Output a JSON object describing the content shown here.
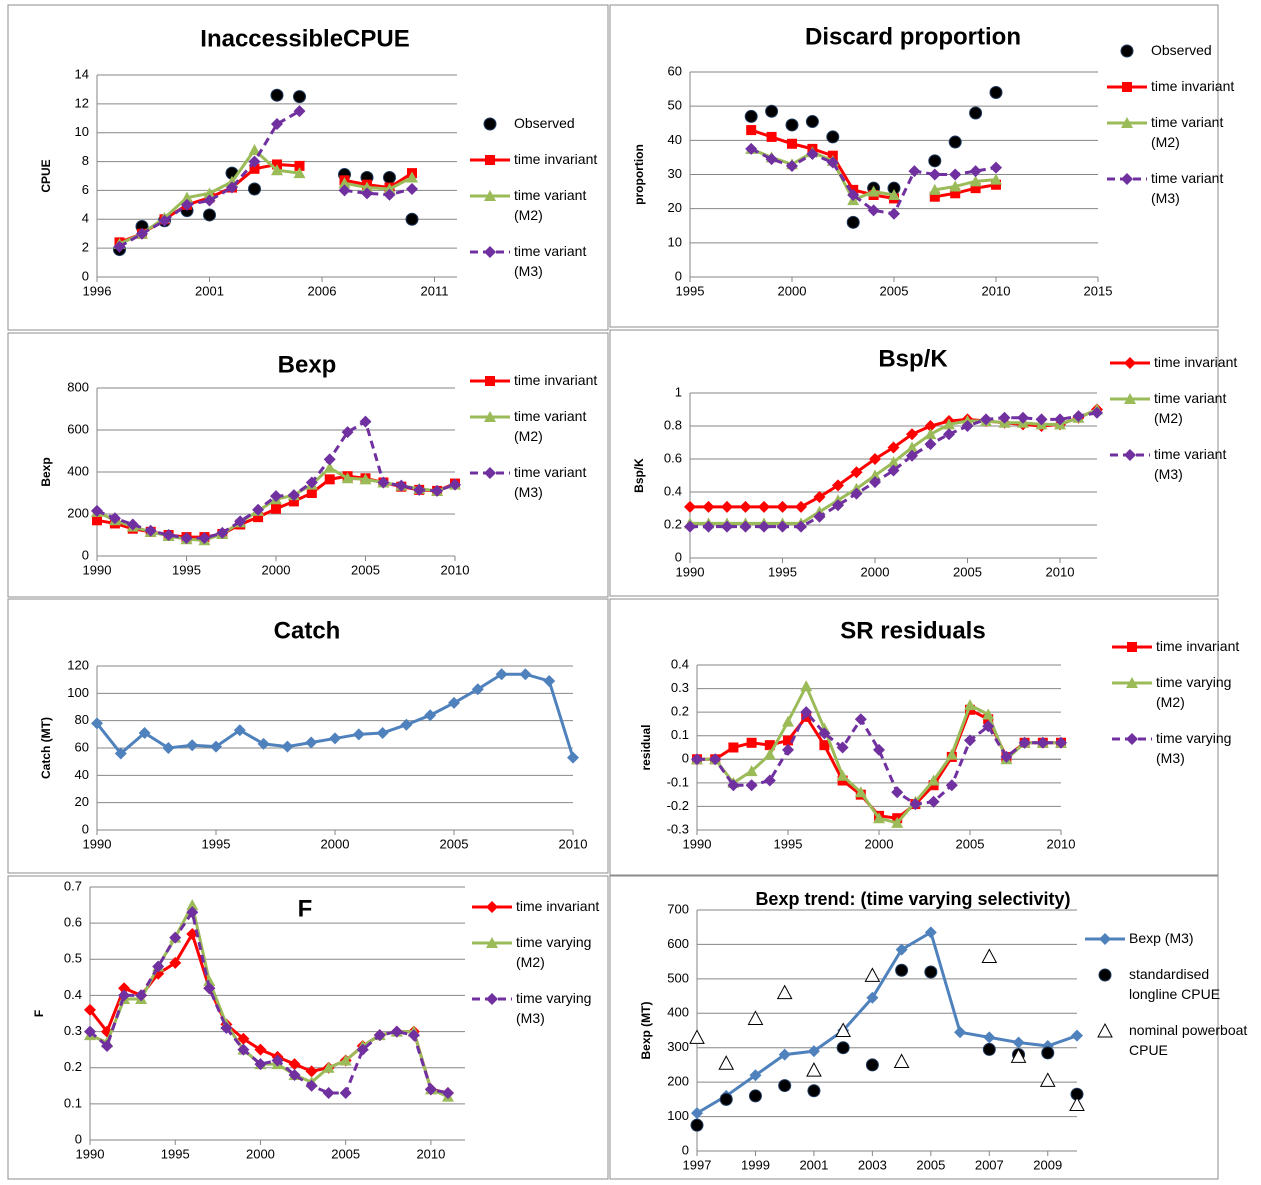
{
  "chart_data": [
    {
      "type": "line",
      "title": "InaccessibleCPUE",
      "y_label": "CPUE",
      "x": [
        1997,
        1998,
        1999,
        2000,
        2001,
        2002,
        2003,
        2004,
        2005,
        2006,
        2007,
        2008,
        2009,
        2010
      ],
      "xlim": [
        1996,
        2012
      ],
      "xticks": [
        1996,
        2001,
        2006,
        2011
      ],
      "ylim": [
        0,
        14
      ],
      "yticks": [
        0,
        2,
        4,
        6,
        8,
        10,
        12,
        14
      ],
      "grid": true,
      "series": [
        {
          "name": "Observed",
          "color": "#000000",
          "marker": "circle",
          "line": false,
          "values": [
            1.9,
            3.5,
            3.9,
            4.6,
            4.3,
            7.2,
            6.1,
            12.6,
            12.5,
            null,
            7.1,
            6.9,
            6.9,
            4.0
          ]
        },
        {
          "name": "time invariant",
          "color": "#ff0000",
          "marker": "square",
          "values": [
            2.4,
            3.0,
            4.0,
            5.0,
            5.5,
            6.2,
            7.5,
            7.8,
            7.7,
            null,
            6.7,
            6.4,
            6.2,
            7.2
          ]
        },
        {
          "name": "time variant (M2)",
          "color": "#9bbb59",
          "marker": "triangle",
          "values": [
            2.3,
            3.0,
            4.1,
            5.5,
            5.8,
            6.6,
            8.8,
            7.4,
            7.2,
            null,
            6.5,
            6.2,
            6.1,
            6.9
          ]
        },
        {
          "name": "time variant (M3)",
          "color": "#7030a0",
          "marker": "diamond",
          "dash": true,
          "values": [
            2.1,
            3.0,
            3.9,
            5.0,
            5.3,
            6.2,
            8.0,
            10.6,
            11.5,
            null,
            6.0,
            5.8,
            5.7,
            6.1
          ]
        }
      ]
    },
    {
      "type": "line",
      "title": "Discard proportion",
      "y_label": "proportion",
      "x": [
        1998,
        1999,
        2000,
        2001,
        2002,
        2003,
        2004,
        2005,
        2006,
        2007,
        2008,
        2009,
        2010
      ],
      "xlim": [
        1995,
        2015
      ],
      "xticks": [
        1995,
        2000,
        2005,
        2010,
        2015
      ],
      "ylim": [
        0,
        60
      ],
      "yticks": [
        0,
        10,
        20,
        30,
        40,
        50,
        60
      ],
      "grid": true,
      "series": [
        {
          "name": "Observed",
          "color": "#000000",
          "marker": "circle",
          "line": false,
          "values": [
            47,
            48.5,
            44.5,
            45.5,
            41,
            16,
            26,
            26,
            null,
            34,
            39.5,
            48,
            54
          ]
        },
        {
          "name": "time invariant",
          "color": "#ff0000",
          "marker": "square",
          "values": [
            43,
            41,
            39,
            37.5,
            35.5,
            25.5,
            24,
            23,
            null,
            23.5,
            24.5,
            26,
            27
          ]
        },
        {
          "name": "time variant (M2)",
          "color": "#9bbb59",
          "marker": "triangle",
          "values": [
            37.5,
            35,
            33,
            36.5,
            34,
            22.5,
            25,
            24,
            null,
            25.5,
            26.5,
            28,
            28.5
          ]
        },
        {
          "name": "time variant (M3)",
          "color": "#7030a0",
          "marker": "diamond",
          "dash": true,
          "values": [
            37.5,
            34.5,
            32.5,
            36,
            33.5,
            24,
            19.5,
            18.5,
            31,
            30,
            30,
            31,
            32
          ]
        }
      ]
    },
    {
      "type": "line",
      "title": "Bexp",
      "y_label": "Bexp",
      "x": [
        1990,
        1991,
        1992,
        1993,
        1994,
        1995,
        1996,
        1997,
        1998,
        1999,
        2000,
        2001,
        2002,
        2003,
        2004,
        2005,
        2006,
        2007,
        2008,
        2009,
        2010
      ],
      "xlim": [
        1990,
        2010
      ],
      "xticks": [
        1990,
        1995,
        2000,
        2005,
        2010
      ],
      "ylim": [
        0,
        800
      ],
      "yticks": [
        0,
        200,
        400,
        600,
        800
      ],
      "grid": true,
      "series": [
        {
          "name": "time invariant",
          "color": "#ff0000",
          "marker": "square",
          "values": [
            170,
            155,
            130,
            115,
            100,
            90,
            90,
            105,
            150,
            185,
            225,
            260,
            300,
            365,
            380,
            370,
            350,
            330,
            315,
            310,
            345
          ]
        },
        {
          "name": "time variant (M2)",
          "color": "#9bbb59",
          "marker": "triangle",
          "values": [
            210,
            170,
            140,
            115,
            95,
            80,
            75,
            105,
            160,
            215,
            270,
            290,
            340,
            420,
            370,
            365,
            350,
            335,
            320,
            310,
            340
          ]
        },
        {
          "name": "time variant (M3)",
          "color": "#7030a0",
          "marker": "diamond",
          "dash": true,
          "values": [
            215,
            180,
            150,
            120,
            100,
            85,
            85,
            110,
            165,
            220,
            285,
            290,
            350,
            460,
            590,
            640,
            350,
            335,
            315,
            310,
            340
          ]
        }
      ]
    },
    {
      "type": "line",
      "title": "Bsp/K",
      "y_label": "Bsp/K",
      "x": [
        1990,
        1991,
        1992,
        1993,
        1994,
        1995,
        1996,
        1997,
        1998,
        1999,
        2000,
        2001,
        2002,
        2003,
        2004,
        2005,
        2006,
        2007,
        2008,
        2009,
        2010,
        2011,
        2012
      ],
      "xlim": [
        1990,
        2012
      ],
      "xticks": [
        1990,
        1995,
        2000,
        2005,
        2010
      ],
      "ylim": [
        0,
        1
      ],
      "yticks": [
        0,
        0.2,
        0.4,
        0.6,
        0.8,
        1
      ],
      "grid": true,
      "series": [
        {
          "name": "time invariant",
          "color": "#ff0000",
          "marker": "diamond",
          "values": [
            0.31,
            0.31,
            0.31,
            0.31,
            0.31,
            0.31,
            0.31,
            0.37,
            0.44,
            0.52,
            0.6,
            0.67,
            0.75,
            0.8,
            0.83,
            0.84,
            0.83,
            0.82,
            0.81,
            0.8,
            0.81,
            0.85,
            0.9
          ]
        },
        {
          "name": "time variant (M2)",
          "color": "#9bbb59",
          "marker": "triangle",
          "values": [
            0.21,
            0.21,
            0.21,
            0.21,
            0.21,
            0.21,
            0.21,
            0.28,
            0.35,
            0.42,
            0.5,
            0.58,
            0.67,
            0.75,
            0.81,
            0.83,
            0.83,
            0.82,
            0.82,
            0.81,
            0.81,
            0.85,
            0.9
          ]
        },
        {
          "name": "time variant (M3)",
          "color": "#7030a0",
          "marker": "diamond",
          "dash": true,
          "values": [
            0.19,
            0.19,
            0.19,
            0.19,
            0.19,
            0.19,
            0.19,
            0.25,
            0.32,
            0.39,
            0.46,
            0.53,
            0.62,
            0.69,
            0.75,
            0.8,
            0.84,
            0.85,
            0.85,
            0.84,
            0.84,
            0.86,
            0.88
          ]
        }
      ]
    },
    {
      "type": "line",
      "title": "Catch",
      "y_label": "Catch (MT)",
      "x": [
        1990,
        1991,
        1992,
        1993,
        1994,
        1995,
        1996,
        1997,
        1998,
        1999,
        2000,
        2001,
        2002,
        2003,
        2004,
        2005,
        2006,
        2007,
        2008,
        2009,
        2010
      ],
      "xlim": [
        1990,
        2010
      ],
      "xticks": [
        1990,
        1995,
        2000,
        2005,
        2010
      ],
      "ylim": [
        0,
        120
      ],
      "yticks": [
        0,
        20,
        40,
        60,
        80,
        100,
        120
      ],
      "grid": true,
      "series": [
        {
          "color": "#4f81bd",
          "marker": "diamond",
          "values": [
            78,
            56,
            71,
            60,
            62,
            61,
            73,
            63,
            61,
            64,
            67,
            70,
            71,
            77,
            84,
            93,
            103,
            114,
            114,
            109,
            53
          ]
        }
      ]
    },
    {
      "type": "line",
      "title": "SR residuals",
      "y_label": "residual",
      "x": [
        1990,
        1991,
        1992,
        1993,
        1994,
        1995,
        1996,
        1997,
        1998,
        1999,
        2000,
        2001,
        2002,
        2003,
        2004,
        2005,
        2006,
        2007,
        2008,
        2009,
        2010
      ],
      "xlim": [
        1990,
        2010
      ],
      "xticks": [
        1990,
        1995,
        2000,
        2005,
        2010
      ],
      "ylim": [
        -0.3,
        0.4
      ],
      "yticks": [
        -0.3,
        -0.2,
        -0.1,
        0,
        0.1,
        0.2,
        0.3,
        0.4
      ],
      "grid": true,
      "series": [
        {
          "name": "time invariant",
          "color": "#ff0000",
          "marker": "square",
          "values": [
            0,
            0,
            0.05,
            0.07,
            0.06,
            0.08,
            0.18,
            0.06,
            -0.09,
            -0.15,
            -0.24,
            -0.25,
            -0.19,
            -0.11,
            0.01,
            0.21,
            0.17,
            0.01,
            0.07,
            0.07,
            0.07
          ]
        },
        {
          "name": "time varying (M2)",
          "color": "#9bbb59",
          "marker": "triangle",
          "values": [
            0,
            0,
            -0.1,
            -0.05,
            0.02,
            0.16,
            0.31,
            0.13,
            -0.07,
            -0.14,
            -0.25,
            -0.27,
            -0.18,
            -0.09,
            0.02,
            0.23,
            0.19,
            0,
            0.07,
            0.07,
            0.07
          ]
        },
        {
          "name": "time varying (M3)",
          "color": "#7030a0",
          "marker": "diamond",
          "dash": true,
          "values": [
            0,
            0,
            -0.11,
            -0.11,
            -0.09,
            0.04,
            0.2,
            0.11,
            0.05,
            0.17,
            0.04,
            -0.14,
            -0.19,
            -0.18,
            -0.11,
            0.08,
            0.14,
            0.01,
            0.07,
            0.07,
            0.07
          ]
        }
      ]
    },
    {
      "type": "line",
      "title": "F",
      "y_label": "F",
      "x": [
        1990,
        1991,
        1992,
        1993,
        1994,
        1995,
        1996,
        1997,
        1998,
        1999,
        2000,
        2001,
        2002,
        2003,
        2004,
        2005,
        2006,
        2007,
        2008,
        2009,
        2010,
        2011
      ],
      "xlim": [
        1990,
        2012
      ],
      "xticks": [
        1990,
        1995,
        2000,
        2005,
        2010
      ],
      "ylim": [
        0,
        0.7
      ],
      "yticks": [
        0,
        0.1,
        0.2,
        0.3,
        0.4,
        0.5,
        0.6,
        0.7
      ],
      "grid": true,
      "series": [
        {
          "name": "time invariant",
          "color": "#ff0000",
          "marker": "diamond",
          "values": [
            0.36,
            0.3,
            0.42,
            0.4,
            0.46,
            0.49,
            0.57,
            0.42,
            0.32,
            0.28,
            0.25,
            0.23,
            0.21,
            0.19,
            0.2,
            0.22,
            0.26,
            0.29,
            0.3,
            0.3,
            0.14,
            0.13
          ]
        },
        {
          "name": "time varying (M2)",
          "color": "#9bbb59",
          "marker": "triangle",
          "values": [
            0.29,
            0.27,
            0.39,
            0.39,
            0.48,
            0.56,
            0.65,
            0.44,
            0.32,
            0.25,
            0.21,
            0.21,
            0.18,
            0.16,
            0.2,
            0.22,
            0.26,
            0.29,
            0.3,
            0.3,
            0.14,
            0.12
          ]
        },
        {
          "name": "time varying (M3)",
          "color": "#7030a0",
          "marker": "diamond",
          "dash": true,
          "values": [
            0.3,
            0.26,
            0.4,
            0.4,
            0.48,
            0.56,
            0.63,
            0.42,
            0.31,
            0.25,
            0.21,
            0.22,
            0.18,
            0.15,
            0.13,
            0.13,
            0.25,
            0.29,
            0.3,
            0.29,
            0.14,
            0.13
          ]
        }
      ]
    },
    {
      "type": "line",
      "title": "Bexp trend:  (time varying selectivity)",
      "y_label": "Bexp (MT)",
      "x": [
        1997,
        1998,
        1999,
        2000,
        2001,
        2002,
        2003,
        2004,
        2005,
        2006,
        2007,
        2008,
        2009,
        2010
      ],
      "xlim": [
        1997,
        2010
      ],
      "xticks": [
        1997,
        1999,
        2001,
        2003,
        2005,
        2007,
        2009
      ],
      "ylim": [
        0,
        700
      ],
      "yticks": [
        0,
        100,
        200,
        300,
        400,
        500,
        600,
        700
      ],
      "grid": true,
      "series": [
        {
          "name": "Bexp (M3)",
          "color": "#4f81bd",
          "marker": "diamond",
          "values": [
            110,
            160,
            220,
            280,
            290,
            350,
            445,
            585,
            635,
            345,
            330,
            315,
            305,
            335
          ]
        },
        {
          "name": "standardised longline CPUE",
          "color": "#000000",
          "marker": "circle",
          "line": false,
          "values": [
            75,
            150,
            160,
            190,
            175,
            300,
            250,
            525,
            520,
            null,
            295,
            280,
            285,
            165
          ]
        },
        {
          "name": "nominal powerboat CPUE",
          "color": "#000000",
          "marker": "open-triangle",
          "line": false,
          "values": [
            330,
            255,
            385,
            460,
            235,
            350,
            510,
            260,
            null,
            null,
            565,
            275,
            205,
            135
          ]
        }
      ]
    }
  ]
}
